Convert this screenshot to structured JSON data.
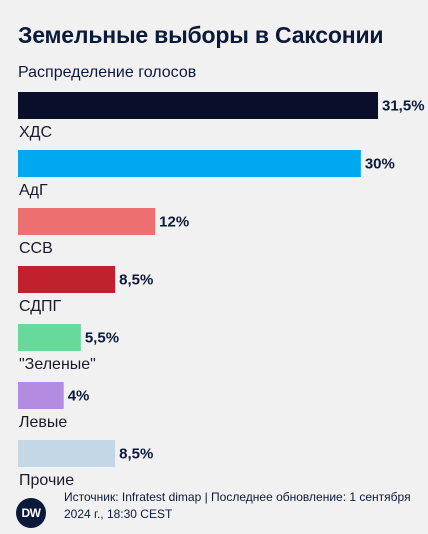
{
  "header": {
    "title": "Земельные выборы в Саксонии",
    "subtitle": "Распределение голосов"
  },
  "chart_data": {
    "type": "bar",
    "orientation": "horizontal",
    "categories": [
      "ХДС",
      "АдГ",
      "ССВ",
      "СДПГ",
      "\"Зеленые\"",
      "Левые",
      "Прочие"
    ],
    "values": [
      31.5,
      30,
      12,
      8.5,
      5.5,
      4,
      8.5
    ],
    "value_labels": [
      "31,5%",
      "30%",
      "12%",
      "8,5%",
      "5,5%",
      "4%",
      "8,5%"
    ],
    "colors": [
      "#0a0e2a",
      "#00a8f0",
      "#ee6f6f",
      "#c1202f",
      "#66d99b",
      "#b38be0",
      "#c3d7e6"
    ],
    "xlim": [
      0,
      31.5
    ],
    "grid": false,
    "legend": "none"
  },
  "footer": {
    "logo_text": "DW",
    "source": "Источник: Infratest dimap | Последнее обновление: 1 сентября 2024 г., 18:30 CEST"
  }
}
